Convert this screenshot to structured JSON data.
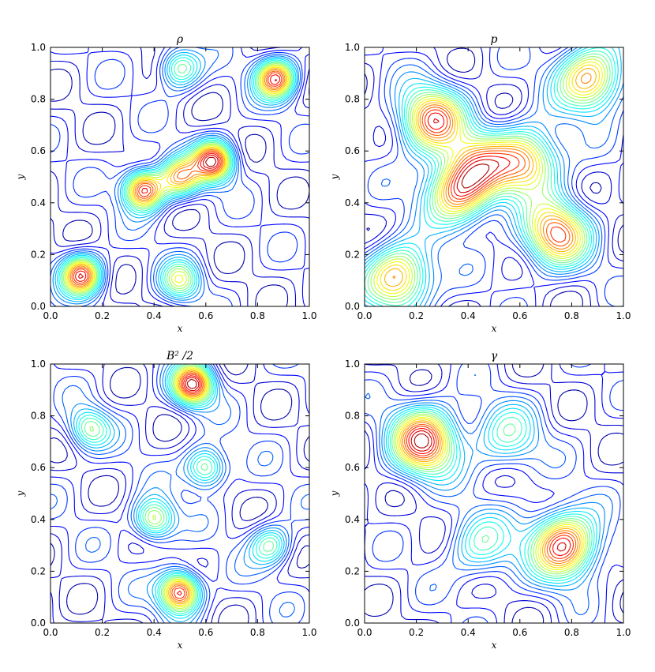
{
  "chart_data": [
    {
      "type": "contour",
      "title": "ρ",
      "xlabel": "x",
      "ylabel": "y",
      "xlim": [
        0.0,
        1.0
      ],
      "ylim": [
        0.0,
        1.0
      ],
      "xticks": [
        "0.0",
        "0.2",
        "0.4",
        "0.6",
        "0.8",
        "1.0"
      ],
      "yticks": [
        "0.0",
        "0.2",
        "0.4",
        "0.6",
        "0.8",
        "1.0"
      ],
      "colormap": "jet",
      "peaks": [
        {
          "x": 0.36,
          "y": 0.45,
          "level": 1.0
        },
        {
          "x": 0.63,
          "y": 0.56,
          "level": 1.0
        },
        {
          "x": 0.12,
          "y": 0.12,
          "level": 0.95
        },
        {
          "x": 0.87,
          "y": 0.88,
          "level": 0.95
        },
        {
          "x": 0.5,
          "y": 0.5,
          "level": 0.75
        },
        {
          "x": 0.5,
          "y": 0.92,
          "level": 0.55
        },
        {
          "x": 0.5,
          "y": 0.1,
          "level": 0.55
        }
      ]
    },
    {
      "type": "contour",
      "title": "p",
      "xlabel": "x",
      "ylabel": "y",
      "xlim": [
        0.0,
        1.0
      ],
      "ylim": [
        0.0,
        1.0
      ],
      "xticks": [
        "0.0",
        "0.2",
        "0.4",
        "0.6",
        "0.8",
        "1.0"
      ],
      "yticks": [
        "0.0",
        "0.2",
        "0.4",
        "0.6",
        "0.8",
        "1.0"
      ],
      "colormap": "jet",
      "peaks": [
        {
          "x": 0.26,
          "y": 0.72,
          "level": 0.85
        },
        {
          "x": 0.74,
          "y": 0.28,
          "level": 0.85
        },
        {
          "x": 0.36,
          "y": 0.44,
          "level": 0.8
        },
        {
          "x": 0.63,
          "y": 0.56,
          "level": 0.75
        },
        {
          "x": 0.87,
          "y": 0.88,
          "level": 0.8
        },
        {
          "x": 0.13,
          "y": 0.11,
          "level": 0.8
        },
        {
          "x": 0.45,
          "y": 0.55,
          "level": 0.55
        }
      ]
    },
    {
      "type": "contour",
      "title": "B² /2",
      "xlabel": "x",
      "ylabel": "y",
      "xlim": [
        0.0,
        1.0
      ],
      "ylim": [
        0.0,
        1.0
      ],
      "xticks": [
        "0.0",
        "0.2",
        "0.4",
        "0.6",
        "0.8",
        "1.0"
      ],
      "yticks": [
        "0.0",
        "0.2",
        "0.4",
        "0.6",
        "0.8",
        "1.0"
      ],
      "colormap": "jet",
      "peaks": [
        {
          "x": 0.55,
          "y": 0.92,
          "level": 0.95
        },
        {
          "x": 0.5,
          "y": 0.12,
          "level": 0.95
        },
        {
          "x": 0.4,
          "y": 0.4,
          "level": 0.6
        },
        {
          "x": 0.6,
          "y": 0.6,
          "level": 0.55
        },
        {
          "x": 0.15,
          "y": 0.75,
          "level": 0.45
        },
        {
          "x": 0.85,
          "y": 0.3,
          "level": 0.45
        }
      ]
    },
    {
      "type": "contour",
      "title": "γ",
      "xlabel": "x",
      "ylabel": "y",
      "xlim": [
        0.0,
        1.0
      ],
      "ylim": [
        0.0,
        1.0
      ],
      "xticks": [
        "0.0",
        "0.2",
        "0.4",
        "0.6",
        "0.8",
        "1.0"
      ],
      "yticks": [
        "0.0",
        "0.2",
        "0.4",
        "0.6",
        "0.8",
        "1.0"
      ],
      "colormap": "jet",
      "peaks": [
        {
          "x": 0.23,
          "y": 0.7,
          "level": 1.0
        },
        {
          "x": 0.77,
          "y": 0.3,
          "level": 1.0
        },
        {
          "x": 0.45,
          "y": 0.3,
          "level": 0.4
        },
        {
          "x": 0.55,
          "y": 0.72,
          "level": 0.4
        }
      ]
    }
  ]
}
